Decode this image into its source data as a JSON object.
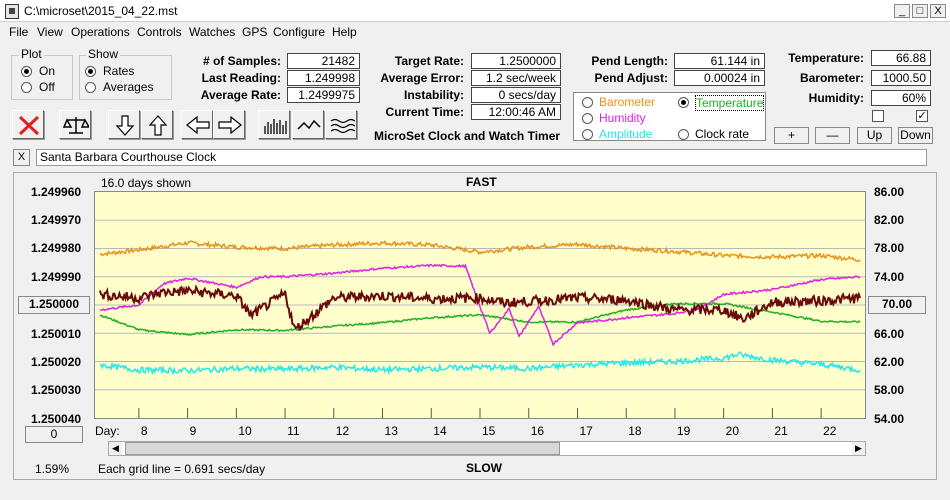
{
  "window": {
    "title": "C:\\microset\\2015_04_22.mst",
    "min": "_",
    "max": "□",
    "close": "X"
  },
  "menu": [
    "File",
    "View",
    "Operations",
    "Controls",
    "Watches",
    "GPS",
    "Configure",
    "Help"
  ],
  "plot_group": {
    "title": "Plot",
    "on": "On",
    "off": "Off",
    "selected": "On"
  },
  "show_group": {
    "title": "Show",
    "rates": "Rates",
    "averages": "Averages",
    "selected": "Rates"
  },
  "stats": {
    "samples_label": "# of Samples:",
    "samples": "21482",
    "last_label": "Last Reading:",
    "last": "1.249998",
    "avg_label": "Average Rate:",
    "avg": "1.2499975"
  },
  "rates": {
    "target_label": "Target Rate:",
    "target": "1.2500000",
    "error_label": "Average Error:",
    "error": "1.2 sec/week",
    "instab_label": "Instability:",
    "instab": "0 secs/day",
    "time_label": "Current Time:",
    "time": "12:00:46 AM"
  },
  "subtitle": "MicroSet Clock and Watch Timer",
  "pend": {
    "length_label": "Pend Length:",
    "length": "61.144 in",
    "adjust_label": "Pend Adjust:",
    "adjust": "0.00024 in"
  },
  "series_select": {
    "barometer": "Barometer",
    "temperature": "Temperature",
    "humidity": "Humidity",
    "amplitude": "Amplitude",
    "clockrate": "Clock rate",
    "selected": "Temperature"
  },
  "env": {
    "temp_label": "Temperature:",
    "temp": "66.88",
    "baro_label": "Barometer:",
    "baro": "1000.50",
    "hum_label": "Humidity:",
    "hum": "60%",
    "check_left": "",
    "check_right": "✓"
  },
  "adj_buttons": {
    "plus": "+",
    "minus": "—",
    "up": "Up",
    "down": "Down"
  },
  "comment": {
    "close": "X",
    "text": "Santa Barbara Courthouse Clock"
  },
  "plot": {
    "days_shown": "16.0 days shown",
    "fast": "FAST",
    "slow": "SLOW",
    "left_value_box": "1.250000",
    "right_value_box": "70.00",
    "bottom_left_box": "0",
    "percent": "1.59%",
    "grid_note": "Each grid line = 0.691 secs/day",
    "day_label": "Day:"
  },
  "colors": {
    "barometer": "#e8901a",
    "temperature": "#22b022",
    "humidity": "#e020e0",
    "amplitude": "#22e8e8",
    "rate": "#6a0a0a",
    "plot_bg": "#ffffcc",
    "grid": "#b8b8b8"
  },
  "chart_data": {
    "type": "line",
    "xlabel": "Day:",
    "x_ticks": [
      8,
      9,
      10,
      11,
      12,
      13,
      14,
      15,
      16,
      17,
      18,
      19,
      20,
      21,
      22
    ],
    "xlim": [
      7.1,
      22.9
    ],
    "y_left_ticks": [
      "1.249960",
      "1.249970",
      "1.249980",
      "1.249990",
      "1.250000",
      "1.250010",
      "1.250020",
      "1.250030",
      "1.250040"
    ],
    "y_left_lim": [
      1.24996,
      1.25004
    ],
    "y_right_ticks": [
      "86.00",
      "82.00",
      "78.00",
      "74.00",
      "70.00",
      "66.00",
      "62.00",
      "58.00",
      "54.00"
    ],
    "y_right_lim": [
      86,
      54
    ],
    "series": [
      {
        "name": "Barometer",
        "color": "#e8901a",
        "x": [
          7.2,
          8,
          9,
          10,
          11,
          12,
          13,
          14,
          15,
          16,
          17,
          18,
          19,
          20,
          21,
          22,
          22.8
        ],
        "y": [
          77.2,
          77.8,
          78.8,
          78.2,
          78.0,
          78.5,
          78.8,
          78.5,
          77.5,
          78.2,
          78.6,
          78.0,
          77.6,
          77.0,
          76.8,
          77.0,
          76.4
        ]
      },
      {
        "name": "Temperature",
        "color": "#22b022",
        "x": [
          7.2,
          8,
          9,
          10,
          11,
          12,
          13,
          14,
          15,
          16,
          17,
          18,
          19,
          20,
          21,
          22,
          22.8
        ],
        "y": [
          68.6,
          66.5,
          65.8,
          66.5,
          66.4,
          67.0,
          67.5,
          68.2,
          68.6,
          67.6,
          67.6,
          69.3,
          70.2,
          70.2,
          69.0,
          67.7,
          67.6
        ]
      },
      {
        "name": "Humidity",
        "color": "#e020e0",
        "x": [
          7.2,
          8,
          8.5,
          9,
          10,
          10.5,
          11,
          12,
          13,
          14,
          14.7,
          15.2,
          15.6,
          15.8,
          16.2,
          16.5,
          17,
          17.5,
          18,
          19,
          19.5,
          20,
          21,
          22,
          22.8
        ],
        "y": [
          69.3,
          70.0,
          73.0,
          73.8,
          72.5,
          74.0,
          74.0,
          74.5,
          75.2,
          75.6,
          75.5,
          66.0,
          69.5,
          65.5,
          69.8,
          64.5,
          67.5,
          67.8,
          68.2,
          68.8,
          69.5,
          71.5,
          72.2,
          73.6,
          74.0
        ]
      },
      {
        "name": "Amplitude",
        "color": "#22e8e8",
        "x": [
          7.2,
          8,
          9,
          10,
          11,
          12,
          13,
          14,
          15,
          16,
          17,
          18,
          19,
          20,
          20.3,
          21,
          22,
          22.8
        ],
        "y": [
          61.5,
          60.8,
          60.7,
          61.0,
          60.9,
          61.2,
          60.8,
          61.0,
          61.2,
          61.0,
          61.5,
          61.8,
          62.0,
          62.5,
          63.0,
          62.2,
          61.6,
          60.8
        ]
      },
      {
        "name": "Clock rate",
        "color": "#6a0a0a",
        "x": [
          7.2,
          8,
          8.5,
          9,
          10,
          10.3,
          11,
          11.2,
          12,
          13,
          14,
          15,
          15.5,
          16,
          17,
          18,
          19,
          20,
          20.4,
          21,
          22,
          22.8
        ],
        "y": [
          71.5,
          71.0,
          71.8,
          72.0,
          71.3,
          68.5,
          71.6,
          66.5,
          71.0,
          71.3,
          70.9,
          71.0,
          70.3,
          70.5,
          71.0,
          70.7,
          69.3,
          69.3,
          68.0,
          70.4,
          70.6,
          71.0
        ]
      }
    ]
  }
}
